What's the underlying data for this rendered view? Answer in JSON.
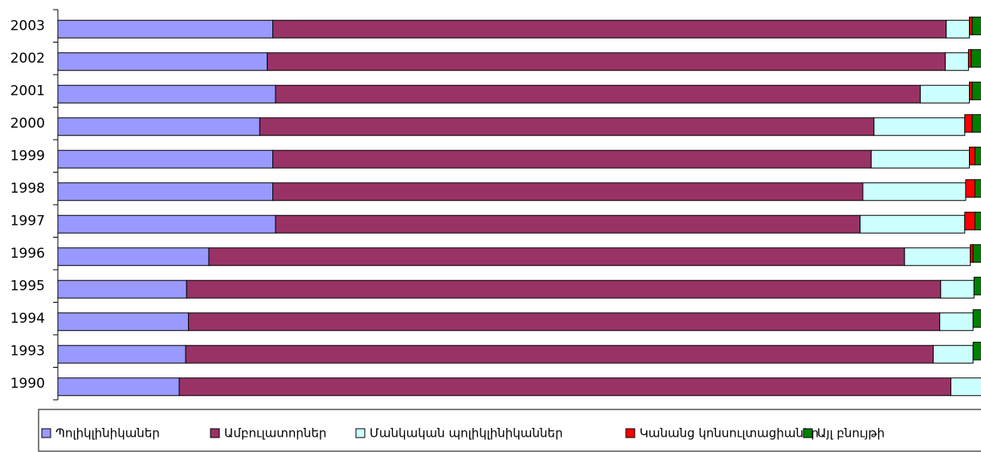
{
  "chart_data": {
    "type": "stacked-bar-horizontal",
    "categories": [
      "2003",
      "2002",
      "2001",
      "2000",
      "1999",
      "1998",
      "1997",
      "1996",
      "1995",
      "1994",
      "1993",
      "1990"
    ],
    "xlim": [
      0,
      100
    ],
    "series": [
      {
        "name": "Պոլիկլինիկաներ",
        "color": "#9999ff",
        "values": [
          23.2,
          22.6,
          23.5,
          21.8,
          23.2,
          23.2,
          23.5,
          16.3,
          13.9,
          14.1,
          13.8,
          13.1
        ]
      },
      {
        "name": "Ամբուլատորներ",
        "color": "#993366",
        "values": [
          72.7,
          73.2,
          69.6,
          66.3,
          64.6,
          63.7,
          63.1,
          75.1,
          81.4,
          81.1,
          80.7,
          83.3
        ]
      },
      {
        "name": "Մանկական պոլիկլինիկաններ",
        "color": "#ccffff",
        "values": [
          2.5,
          2.5,
          5.3,
          9.8,
          10.6,
          11.1,
          11.3,
          7.1,
          3.6,
          3.6,
          4.3,
          3.6
        ]
      },
      {
        "name": "Կանանց կոնսուլտացիաներ",
        "color": "#ff0000",
        "values": [
          0.3,
          0.3,
          0.3,
          0.8,
          0.6,
          1.0,
          1.1,
          0.3,
          0,
          0,
          0,
          0
        ]
      },
      {
        "name": "Այլ բնույթի",
        "color": "#008000",
        "values": [
          1.3,
          1.4,
          1.3,
          1.3,
          1.0,
          1.0,
          1.0,
          1.2,
          1.1,
          1.2,
          1.2,
          0
        ]
      }
    ],
    "legend": "bottom"
  }
}
